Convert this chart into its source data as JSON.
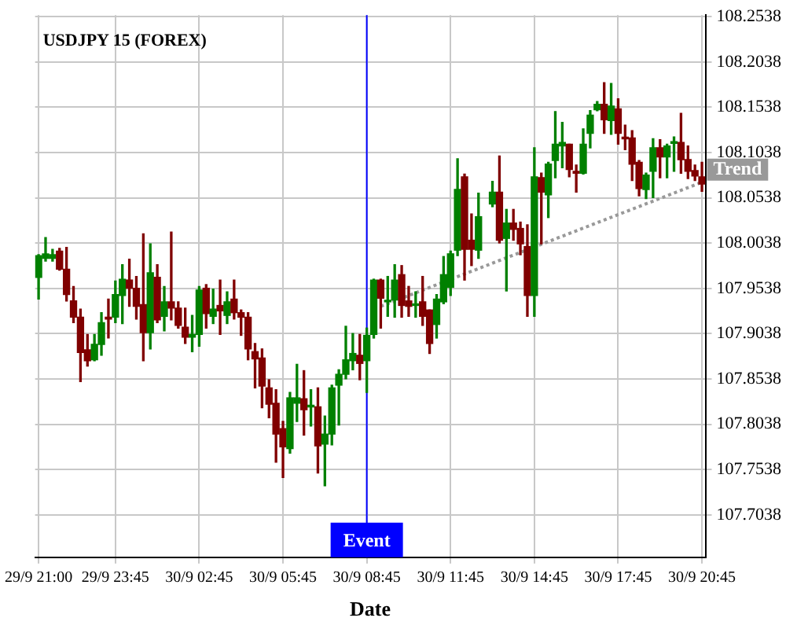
{
  "chart_data": {
    "type": "candlestick",
    "title": "USDJPY 15 (FOREX)",
    "xlabel": "Date",
    "categories": [
      "29/9 21:00",
      null,
      null,
      null,
      null,
      null,
      null,
      null,
      null,
      null,
      null,
      "29/9 23:45",
      null,
      null,
      null,
      null,
      null,
      null,
      null,
      null,
      null,
      null,
      null,
      "30/9 02:45",
      null,
      null,
      null,
      null,
      null,
      null,
      null,
      null,
      null,
      null,
      null,
      "30/9 05:45",
      null,
      null,
      null,
      null,
      null,
      null,
      null,
      null,
      null,
      null,
      null,
      "30/9 08:45",
      null,
      null,
      null,
      null,
      null,
      null,
      null,
      null,
      null,
      null,
      null,
      "30/9 11:45",
      null,
      null,
      null,
      null,
      null,
      null,
      null,
      null,
      null,
      null,
      null,
      "30/9 14:45",
      null,
      null,
      null,
      null,
      null,
      null,
      null,
      null,
      null,
      null,
      null,
      "30/9 17:45",
      null,
      null,
      null,
      null,
      null,
      null,
      null,
      null,
      null,
      null,
      null,
      "30/9 20:45"
    ],
    "ohlc": [
      [
        107.966,
        107.991,
        107.942,
        107.99
      ],
      [
        107.987,
        108.01,
        107.984,
        107.992
      ],
      [
        107.987,
        107.997,
        107.984,
        107.991
      ],
      [
        107.995,
        107.998,
        107.974,
        107.975
      ],
      [
        107.975,
        107.999,
        107.94,
        107.947
      ],
      [
        107.94,
        107.956,
        107.916,
        107.922
      ],
      [
        107.922,
        107.931,
        107.851,
        107.883
      ],
      [
        107.886,
        107.903,
        107.868,
        107.874
      ],
      [
        107.875,
        107.903,
        107.874,
        107.892
      ],
      [
        107.892,
        107.927,
        107.88,
        107.916
      ],
      [
        107.922,
        107.942,
        107.899,
        107.92
      ],
      [
        107.922,
        107.962,
        107.916,
        107.947
      ],
      [
        107.946,
        107.98,
        107.915,
        107.964
      ],
      [
        107.963,
        107.986,
        107.934,
        107.954
      ],
      [
        107.954,
        107.967,
        107.92,
        107.934
      ],
      [
        107.936,
        108.014,
        107.874,
        107.905
      ],
      [
        107.905,
        108.003,
        107.887,
        107.971
      ],
      [
        107.966,
        107.98,
        107.916,
        107.919
      ],
      [
        107.923,
        107.956,
        107.907,
        107.939
      ],
      [
        107.939,
        108.016,
        107.919,
        107.932
      ],
      [
        107.932,
        107.939,
        107.91,
        107.913
      ],
      [
        107.911,
        107.932,
        107.893,
        107.9
      ],
      [
        107.9,
        107.924,
        107.884,
        107.903
      ],
      [
        107.903,
        107.956,
        107.89,
        107.952
      ],
      [
        107.954,
        107.958,
        107.91,
        107.926
      ],
      [
        107.923,
        107.953,
        107.915,
        107.931
      ],
      [
        107.935,
        107.963,
        107.903,
        107.929
      ],
      [
        107.924,
        107.95,
        107.915,
        107.939
      ],
      [
        107.942,
        107.963,
        107.92,
        107.927
      ],
      [
        107.927,
        107.93,
        107.902,
        107.922
      ],
      [
        107.922,
        107.927,
        107.875,
        107.887
      ],
      [
        107.884,
        107.893,
        107.844,
        107.876
      ],
      [
        107.877,
        107.887,
        107.822,
        107.846
      ],
      [
        107.844,
        107.853,
        107.811,
        107.826
      ],
      [
        107.827,
        107.842,
        107.762,
        107.793
      ],
      [
        107.799,
        107.807,
        107.745,
        107.779
      ],
      [
        107.777,
        107.839,
        107.772,
        107.833
      ],
      [
        107.827,
        107.87,
        107.807,
        107.833
      ],
      [
        107.832,
        107.863,
        107.792,
        107.82
      ],
      [
        107.823,
        107.842,
        107.802,
        107.824
      ],
      [
        107.823,
        107.844,
        107.75,
        107.78
      ],
      [
        107.782,
        107.813,
        107.736,
        107.793
      ],
      [
        107.793,
        107.847,
        107.781,
        107.844
      ],
      [
        107.847,
        107.864,
        107.803,
        107.859
      ],
      [
        107.859,
        107.912,
        107.854,
        107.875
      ],
      [
        107.874,
        107.904,
        107.864,
        107.882
      ],
      [
        107.88,
        107.903,
        107.853,
        107.871
      ],
      [
        107.874,
        107.91,
        107.839,
        107.902
      ],
      [
        107.903,
        107.964,
        107.899,
        107.963
      ],
      [
        107.963,
        107.964,
        107.91,
        107.943
      ],
      [
        107.939,
        107.967,
        107.923,
        107.94
      ],
      [
        107.941,
        107.98,
        107.922,
        107.963
      ],
      [
        107.969,
        107.979,
        107.922,
        107.935
      ],
      [
        107.94,
        107.956,
        107.923,
        107.934
      ],
      [
        107.935,
        107.95,
        107.922,
        107.936
      ],
      [
        107.939,
        107.967,
        107.913,
        107.923
      ],
      [
        107.93,
        107.93,
        107.882,
        107.893
      ],
      [
        107.914,
        107.947,
        107.899,
        107.942
      ],
      [
        107.939,
        107.989,
        107.937,
        107.969
      ],
      [
        107.955,
        107.995,
        107.946,
        107.992
      ],
      [
        107.996,
        108.097,
        107.99,
        108.063
      ],
      [
        108.077,
        108.08,
        107.963,
        107.997
      ],
      [
        108.007,
        108.036,
        107.979,
        107.997
      ],
      [
        107.996,
        108.059,
        107.987,
        108.033
      ],
      null,
      [
        108.047,
        108.072,
        108.044,
        108.06
      ],
      [
        108.06,
        108.1,
        108.004,
        108.007
      ],
      [
        108.009,
        108.041,
        107.951,
        108.026
      ],
      [
        108.026,
        108.041,
        108.007,
        108.019
      ],
      [
        108.02,
        108.027,
        107.991,
        108.003
      ],
      [
        108.0,
        108.024,
        107.923,
        107.946
      ],
      [
        107.946,
        108.109,
        107.923,
        108.077
      ],
      [
        108.076,
        108.081,
        108.003,
        108.06
      ],
      [
        108.057,
        108.093,
        108.032,
        108.091
      ],
      [
        108.095,
        108.149,
        108.076,
        108.113
      ],
      [
        108.111,
        108.137,
        108.087,
        108.115
      ],
      [
        108.113,
        108.113,
        108.077,
        108.085
      ],
      [
        108.083,
        108.09,
        108.06,
        108.081
      ],
      [
        108.081,
        108.13,
        108.08,
        108.113
      ],
      [
        108.125,
        108.15,
        108.109,
        108.145
      ],
      [
        108.151,
        108.16,
        108.15,
        108.157
      ],
      [
        108.157,
        108.181,
        108.125,
        108.14
      ],
      [
        108.139,
        108.18,
        108.124,
        108.155
      ],
      [
        108.152,
        108.163,
        108.113,
        108.125
      ],
      [
        108.12,
        108.134,
        108.107,
        108.119
      ],
      [
        108.12,
        108.128,
        108.073,
        108.091
      ],
      [
        108.093,
        108.095,
        108.056,
        108.064
      ],
      [
        108.063,
        108.081,
        108.053,
        108.079
      ],
      [
        108.083,
        108.119,
        108.054,
        108.109
      ],
      [
        108.109,
        108.118,
        108.076,
        108.099
      ],
      [
        108.099,
        108.113,
        108.076,
        108.111
      ],
      [
        108.114,
        108.121,
        108.083,
        108.115
      ],
      [
        108.115,
        108.147,
        108.081,
        108.096
      ],
      [
        108.096,
        108.111,
        108.075,
        108.083
      ],
      [
        108.084,
        108.09,
        108.073,
        108.078
      ],
      [
        108.077,
        108.093,
        108.061,
        108.069
      ]
    ],
    "colors": [
      "#008000",
      "#008000",
      "#008000",
      "#800000",
      "#800000",
      "#800000",
      "#800000",
      "#800000",
      "#008000",
      "#008000",
      "#800000",
      "#008000",
      "#008000",
      "#800000",
      "#800000",
      "#800000",
      "#008000",
      "#800000",
      "#008000",
      "#800000",
      "#800000",
      "#800000",
      "#008000",
      "#008000",
      "#800000",
      "#008000",
      "#800000",
      "#008000",
      "#800000",
      "#800000",
      "#800000",
      "#800000",
      "#800000",
      "#800000",
      "#800000",
      "#800000",
      "#008000",
      "#008000",
      "#800000",
      "#008000",
      "#800000",
      "#008000",
      "#008000",
      "#008000",
      "#008000",
      "#008000",
      "#800000",
      "#008000",
      "#008000",
      "#800000",
      "#008000",
      "#008000",
      "#800000",
      "#800000",
      "#008000",
      "#800000",
      "#800000",
      "#008000",
      "#008000",
      "#008000",
      "#008000",
      "#800000",
      "#800000",
      "#008000",
      null,
      "#008000",
      "#800000",
      "#008000",
      "#800000",
      "#800000",
      "#800000",
      "#008000",
      "#800000",
      "#008000",
      "#008000",
      "#008000",
      "#800000",
      "#800000",
      "#008000",
      "#008000",
      "#008000",
      "#800000",
      "#008000",
      "#800000",
      "#800000",
      "#800000",
      "#800000",
      "#008000",
      "#008000",
      "#800000",
      "#008000",
      "#008000",
      "#800000",
      "#800000",
      "#800000",
      "#800000"
    ],
    "series": [
      {
        "type": "line",
        "name": "Trend",
        "color": "#999999",
        "line_style": "dotted",
        "marker": "none",
        "values": [
          null,
          null,
          null,
          null,
          null,
          null,
          null,
          null,
          null,
          null,
          null,
          null,
          null,
          null,
          null,
          null,
          null,
          null,
          null,
          null,
          null,
          null,
          null,
          null,
          null,
          null,
          null,
          null,
          null,
          null,
          null,
          null,
          null,
          null,
          null,
          null,
          null,
          null,
          null,
          null,
          null,
          null,
          null,
          null,
          null,
          null,
          null,
          null,
          null,
          107.934,
          null,
          null,
          null,
          null,
          null,
          null,
          null,
          null,
          null,
          null,
          null,
          null,
          null,
          null,
          null,
          null,
          null,
          null,
          null,
          null,
          null,
          null,
          null,
          null,
          null,
          null,
          null,
          null,
          null,
          null,
          null,
          null,
          null,
          null,
          null,
          null,
          null,
          null,
          null,
          null,
          null,
          null,
          null,
          null,
          null,
          108.071
        ]
      }
    ],
    "ref_lines": [
      {
        "axis": "x",
        "value": "30/9 08:45",
        "label": "Event",
        "color": "#0000ff"
      }
    ],
    "ylim": [
      107.657,
      108.2555
    ],
    "yticks": [
      107.7038,
      107.7538,
      107.8038,
      107.8538,
      107.9038,
      107.9538,
      108.0038,
      108.0538,
      108.1038,
      108.1538,
      108.2038,
      108.2538
    ],
    "grid": true,
    "legend": false
  }
}
